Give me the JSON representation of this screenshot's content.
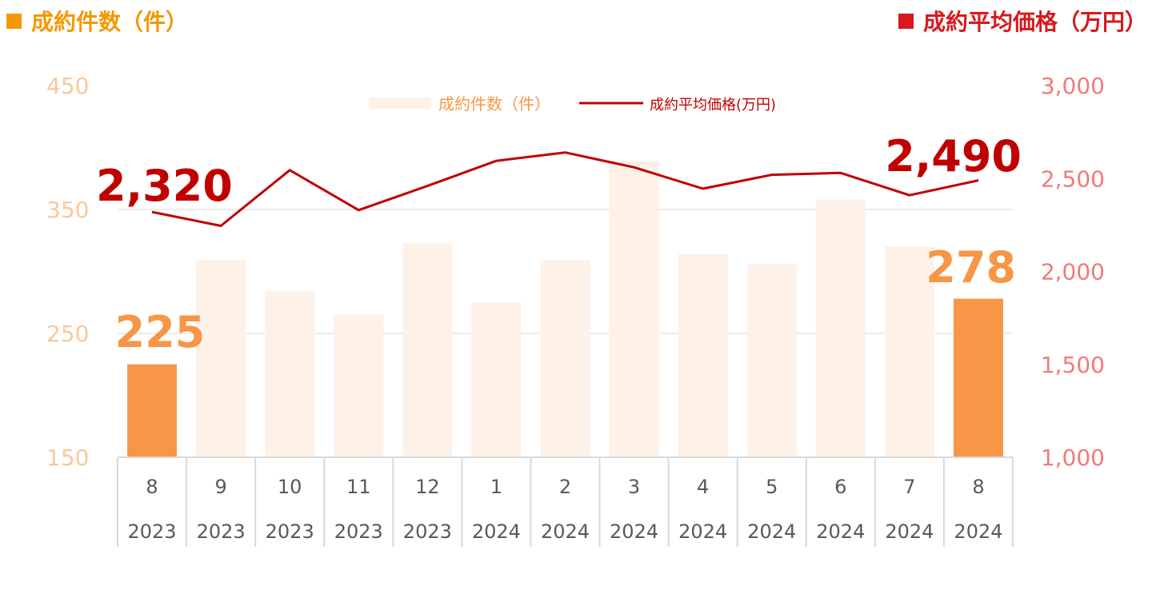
{
  "headers": {
    "left": {
      "text": "成約件数（件）",
      "color": "#F39800"
    },
    "right": {
      "text": "成約平均価格（万円）",
      "color": "#D7191E"
    }
  },
  "colors": {
    "bar_light": "#FDF1E8",
    "bar_highlight": "#F79646",
    "line": "#C00000",
    "left_axis_text": "#F9C89B",
    "right_axis_text": "#F27A7A",
    "callout_count": "#F79646",
    "callout_price": "#C00000",
    "grid": "#D9D9D9",
    "category_text": "#595959"
  },
  "chart_data": {
    "type": "bar+line",
    "categories": [
      {
        "month": "8",
        "year": "2023"
      },
      {
        "month": "9",
        "year": "2023"
      },
      {
        "month": "10",
        "year": "2023"
      },
      {
        "month": "11",
        "year": "2023"
      },
      {
        "month": "12",
        "year": "2023"
      },
      {
        "month": "1",
        "year": "2024"
      },
      {
        "month": "2",
        "year": "2024"
      },
      {
        "month": "3",
        "year": "2024"
      },
      {
        "month": "4",
        "year": "2024"
      },
      {
        "month": "5",
        "year": "2024"
      },
      {
        "month": "6",
        "year": "2024"
      },
      {
        "month": "7",
        "year": "2024"
      },
      {
        "month": "8",
        "year": "2024"
      }
    ],
    "series": [
      {
        "name": "成約件数（件）",
        "type": "bar",
        "axis": "left",
        "values": [
          225,
          309,
          284,
          265,
          323,
          275,
          309,
          389,
          314,
          306,
          358,
          320,
          278
        ],
        "highlight": [
          true,
          false,
          false,
          false,
          false,
          false,
          false,
          false,
          false,
          false,
          false,
          false,
          true
        ]
      },
      {
        "name": "成約平均価格(万円)",
        "type": "line",
        "axis": "right",
        "values": [
          2320,
          2245,
          2545,
          2330,
          2460,
          2595,
          2640,
          2560,
          2445,
          2520,
          2530,
          2410,
          2490
        ]
      }
    ],
    "left_axis": {
      "min": 150,
      "max": 450,
      "ticks": [
        "150",
        "250",
        "350",
        "450"
      ]
    },
    "right_axis": {
      "min": 1000,
      "max": 3000,
      "ticks": [
        "1,000",
        "1,500",
        "2,000",
        "2,500",
        "3,000"
      ]
    },
    "callouts": {
      "count_start": "225",
      "count_end": "278",
      "price_start": "2,320",
      "price_end": "2,490"
    },
    "legend": {
      "bar_label": "成約件数（件）",
      "line_label": "成約平均価格(万円)",
      "placement": "top-center"
    },
    "grid": true
  }
}
